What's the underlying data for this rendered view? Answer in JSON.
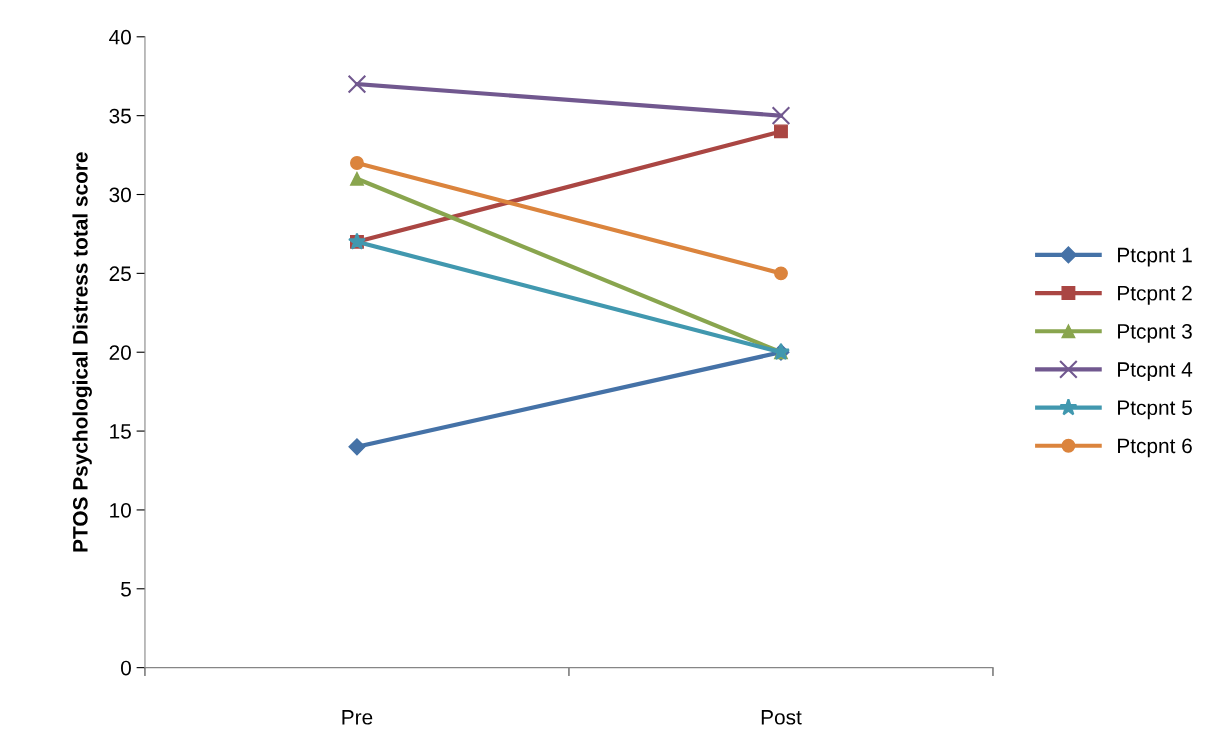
{
  "chart_data": {
    "type": "line",
    "ylabel": "PTOS Psychological Distress total score",
    "categories": [
      "Pre",
      "Post"
    ],
    "series": [
      {
        "name": "Ptcpnt 1",
        "color": "#4572a7",
        "marker": "diamond",
        "values": [
          14,
          20
        ]
      },
      {
        "name": "Ptcpnt 2",
        "color": "#aa4643",
        "marker": "square",
        "values": [
          27,
          34
        ]
      },
      {
        "name": "Ptcpnt 3",
        "color": "#89a54e",
        "marker": "triangle",
        "values": [
          31,
          20
        ]
      },
      {
        "name": "Ptcpnt 4",
        "color": "#71588f",
        "marker": "cross",
        "values": [
          37,
          35
        ]
      },
      {
        "name": "Ptcpnt 5",
        "color": "#4198af",
        "marker": "star",
        "values": [
          27,
          20
        ]
      },
      {
        "name": "Ptcpnt 6",
        "color": "#db843d",
        "marker": "circle",
        "values": [
          32,
          25
        ]
      }
    ],
    "ylim": [
      0,
      40
    ],
    "yticks": [
      0,
      5,
      10,
      15,
      20,
      25,
      30,
      35,
      40
    ],
    "grid": false,
    "legend": "right",
    "line_style": "solid"
  }
}
